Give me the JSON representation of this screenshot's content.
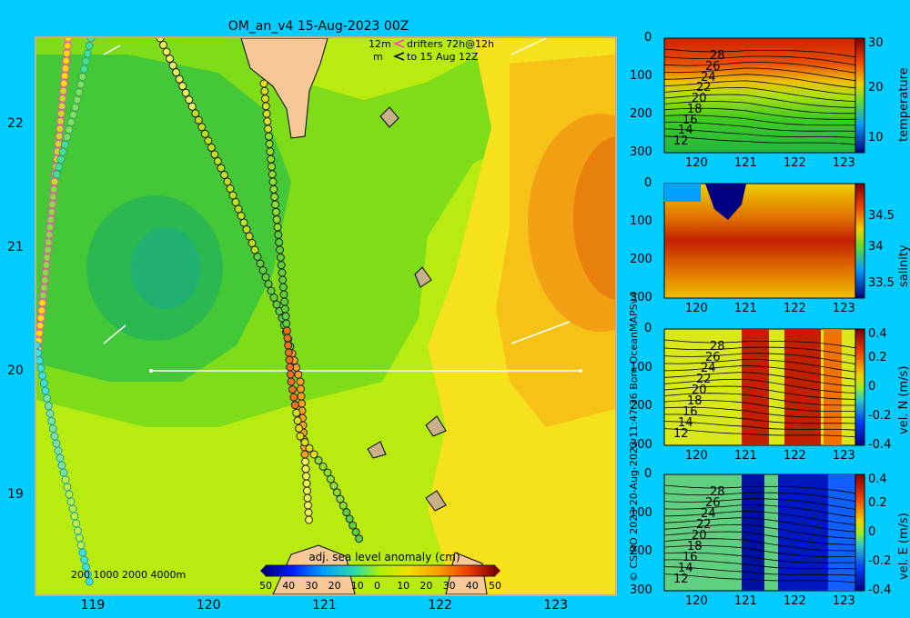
{
  "header": {
    "title": "OM_an_v4  15-Aug-2023 00Z"
  },
  "drifter_legend": {
    "line1_depth": "12m",
    "line1_text": "drifters 72h@12h",
    "line2_depth": "m",
    "line2_text": "to 15 Aug 12Z"
  },
  "credit": "© CSIRO 2023   20-Aug-2023 11:47:36 Bom OceanMAPSv4",
  "bathy_scale": "200  1000  2000  4000m",
  "chart_data": [
    {
      "type": "heatmap",
      "title": "",
      "xlabel": "",
      "ylabel": "",
      "xlim": [
        118.5,
        123.5
      ],
      "ylim": [
        18.2,
        22.7
      ],
      "x_ticks": [
        119,
        120,
        121,
        122,
        123
      ],
      "y_ticks": [
        19,
        20,
        21,
        22
      ],
      "colorbar": {
        "label": "adj. sea level anomaly (cm)",
        "ticks": [
          "50",
          "40",
          "30",
          "20",
          "10",
          "0",
          "10",
          "20",
          "30",
          "40",
          "50"
        ]
      },
      "section_line": {
        "lon": [
          119.5,
          123.2
        ],
        "lat": [
          20.0,
          20.0
        ]
      },
      "arrows": [
        {
          "lon": 119.0,
          "lat": 22.6
        },
        {
          "lon": 122.6,
          "lat": 22.6
        },
        {
          "lon": 119.1,
          "lat": 20.3
        },
        {
          "lon": 122.7,
          "lat": 20.3
        }
      ]
    },
    {
      "type": "heatmap",
      "panel": "temperature",
      "colorbar_label": "temperature",
      "x_ticks": [
        "120",
        "121",
        "122",
        "123"
      ],
      "y_ticks": [
        "0",
        "100",
        "200",
        "300"
      ],
      "cbar_ticks": [
        "30",
        "20",
        "10"
      ],
      "contour_labels": [
        "28",
        "26",
        "24",
        "22",
        "20",
        "18",
        "16",
        "14",
        "12"
      ]
    },
    {
      "type": "heatmap",
      "panel": "salinity",
      "colorbar_label": "salinity",
      "x_ticks": [
        "120",
        "121",
        "122",
        "123"
      ],
      "y_ticks": [
        "0",
        "100",
        "200",
        "300"
      ],
      "cbar_ticks": [
        "34.5",
        "34",
        "33.5"
      ]
    },
    {
      "type": "heatmap",
      "panel": "vel_N",
      "colorbar_label": "vel. N (m/s)",
      "x_ticks": [
        "120",
        "121",
        "122",
        "123"
      ],
      "y_ticks": [
        "0",
        "100",
        "200",
        "300"
      ],
      "cbar_ticks": [
        "0.4",
        "0.2",
        "0",
        "-0.2",
        "-0.4"
      ],
      "contour_labels": [
        "28",
        "26",
        "24",
        "22",
        "20",
        "18",
        "16",
        "14",
        "12"
      ]
    },
    {
      "type": "heatmap",
      "panel": "vel_E",
      "colorbar_label": "vel. E (m/s)",
      "x_ticks": [
        "120",
        "121",
        "122",
        "123"
      ],
      "y_ticks": [
        "0",
        "100",
        "200",
        "300"
      ],
      "cbar_ticks": [
        "0.4",
        "0.2",
        "0",
        "-0.2",
        "-0.4"
      ],
      "contour_labels": [
        "28",
        "26",
        "24",
        "22",
        "20",
        "18",
        "16",
        "14",
        "12"
      ]
    }
  ]
}
